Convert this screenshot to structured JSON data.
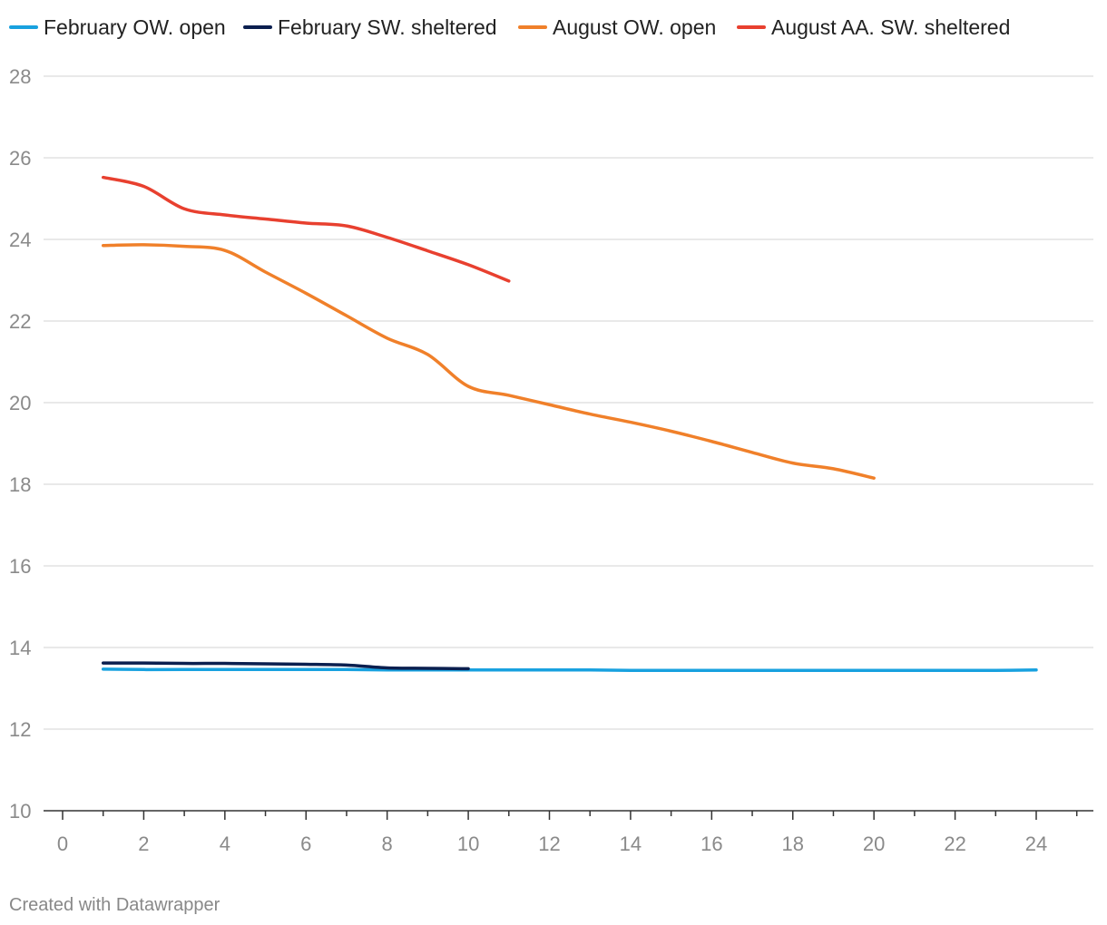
{
  "chart_data": {
    "type": "line",
    "title": "",
    "xlabel": "",
    "ylabel": "",
    "xlim": [
      0,
      25
    ],
    "ylim": [
      10,
      28
    ],
    "x_ticks": [
      0,
      2,
      4,
      6,
      8,
      10,
      12,
      14,
      16,
      18,
      20,
      22,
      24
    ],
    "y_ticks": [
      10,
      12,
      14,
      16,
      18,
      20,
      22,
      24,
      26,
      28
    ],
    "grid": true,
    "legend_position": "top-left",
    "series": [
      {
        "name": "February OW. open",
        "color": "#18a1df",
        "x": [
          1,
          2,
          3,
          4,
          5,
          6,
          7,
          8,
          9,
          10,
          11,
          12,
          13,
          14,
          15,
          16,
          17,
          18,
          19,
          20,
          21,
          22,
          23,
          24
        ],
        "y": [
          13.47,
          13.46,
          13.46,
          13.46,
          13.46,
          13.46,
          13.46,
          13.45,
          13.45,
          13.45,
          13.45,
          13.45,
          13.45,
          13.44,
          13.44,
          13.44,
          13.44,
          13.44,
          13.44,
          13.44,
          13.44,
          13.44,
          13.44,
          13.45
        ]
      },
      {
        "name": "February SW. sheltered",
        "color": "#0b1f4f",
        "x": [
          1,
          2,
          3,
          4,
          5,
          6,
          7,
          8,
          9,
          10
        ],
        "y": [
          13.62,
          13.62,
          13.61,
          13.61,
          13.6,
          13.59,
          13.57,
          13.5,
          13.49,
          13.48
        ]
      },
      {
        "name": "August OW. open",
        "color": "#f0802a",
        "x": [
          1,
          2,
          3,
          4,
          5,
          6,
          7,
          8,
          9,
          10,
          11,
          12,
          13,
          14,
          15,
          16,
          17,
          18,
          19,
          20
        ],
        "y": [
          23.85,
          23.87,
          23.83,
          23.73,
          23.2,
          22.68,
          22.13,
          21.58,
          21.18,
          20.4,
          20.18,
          19.95,
          19.72,
          19.52,
          19.3,
          19.05,
          18.78,
          18.52,
          18.38,
          18.15
        ]
      },
      {
        "name": "August AA. SW. sheltered",
        "color": "#e8402f",
        "x": [
          1,
          2,
          3,
          4,
          5,
          6,
          7,
          8,
          9,
          10,
          11
        ],
        "y": [
          25.52,
          25.3,
          24.75,
          24.6,
          24.5,
          24.4,
          24.33,
          24.05,
          23.72,
          23.38,
          22.98
        ]
      }
    ]
  },
  "credit": "Created with Datawrapper"
}
